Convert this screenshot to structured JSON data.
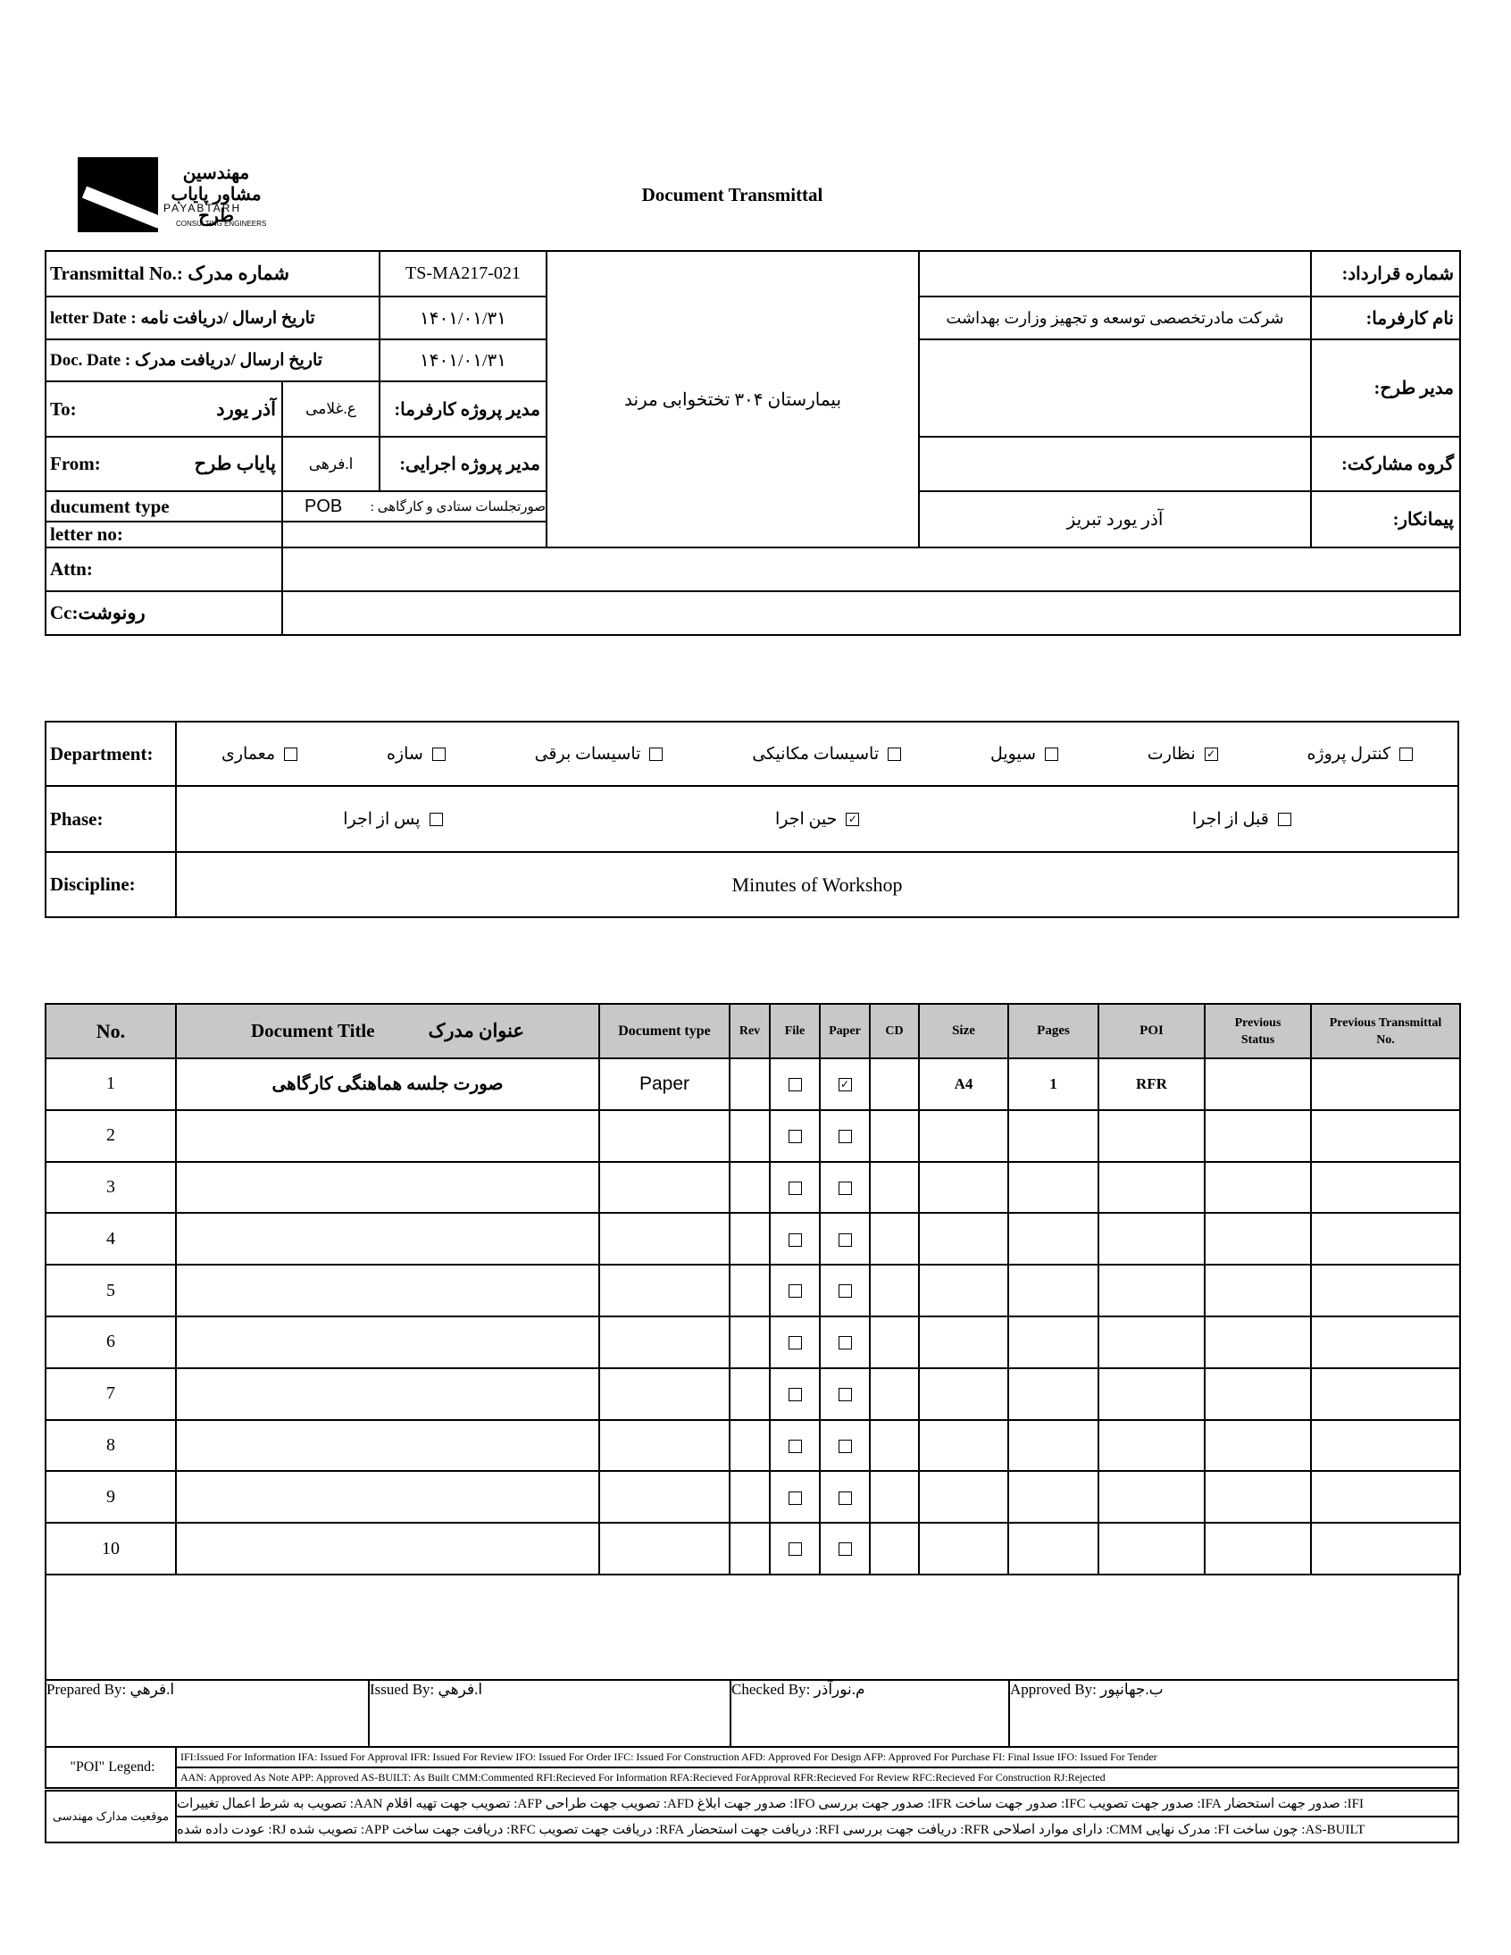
{
  "header": {
    "logo_fa": "مهندسین مشاور پایاب طرح",
    "logo_en": "PAYABTARH",
    "logo_sub": "CONSULTING ENGINEERS",
    "title": "Document Transmittal"
  },
  "info": {
    "transmittal_label": "Transmittal No.: شماره مدرک",
    "transmittal_value": "TS-MA217-021",
    "letter_date_label": "letter Date  :  تاریخ ارسال /دریافت نامه",
    "letter_date_value": "۱۴۰۱/۰۱/۳۱",
    "doc_date_label": "Doc. Date :   تاریخ ارسال /دریافت مدرک",
    "doc_date_value": "۱۴۰۱/۰۱/۳۱",
    "to_label": "To:",
    "to_value": "آذر یورد",
    "client_pm_name": "ع.غلامی",
    "client_pm_label": "مدیر پروژه کارفرما:",
    "from_label": "From:",
    "from_value": "پایاب طرح",
    "exec_pm_name": "ا.فرهی",
    "exec_pm_label": "مدیر پروژه اجرایی:",
    "doctype_label": "ducument type",
    "doctype_value": "POB",
    "doctype_desc": "صورتجلسات ستادی و کارگاهی  :",
    "letter_no_label": "letter no:",
    "project": "بیمارستان ۳۰۴ تختخوابی مرند",
    "contract_label": "شماره قرارداد:",
    "contract_value": "",
    "client_label": "نام کارفرما:",
    "client_value": "شرکت مادرتخصصی توسعه و تجهیز وزارت بهداشت",
    "design_manager_label": "مدیر طرح:",
    "design_manager_value": "",
    "partnership_label": "گروه مشارکت:",
    "partnership_value": "",
    "contractor_label": "پیمانکار:",
    "contractor_value": "آذر یورد تبریز",
    "attn_label": "Attn:",
    "cc_label": "Cc:رونوشت"
  },
  "department": {
    "label": "Department:",
    "options": [
      {
        "label": "معماری",
        "checked": false
      },
      {
        "label": "سازه",
        "checked": false
      },
      {
        "label": "تاسیسات برقی",
        "checked": false
      },
      {
        "label": "تاسیسات مکانیکی",
        "checked": false
      },
      {
        "label": "سیویل",
        "checked": false
      },
      {
        "label": "نظارت",
        "checked": true
      },
      {
        "label": "کنترل پروژه",
        "checked": false
      }
    ]
  },
  "phase": {
    "label": "Phase:",
    "options": [
      {
        "label": "پس از اجرا",
        "checked": false
      },
      {
        "label": "حین اجرا",
        "checked": true
      },
      {
        "label": "قبل از اجرا",
        "checked": false
      }
    ]
  },
  "discipline": {
    "label": "Discipline:",
    "value": "Minutes of Workshop"
  },
  "documents": {
    "headers": {
      "no": "No.",
      "title_en": "Document Title",
      "title_fa": "عنوان مدرک",
      "type": "Document type",
      "rev": "Rev",
      "file": "File",
      "paper": "Paper",
      "cd": "CD",
      "size": "Size",
      "pages": "Pages",
      "poi": "POI",
      "prev_status": "Previous Status",
      "prev_transmittal": "Previous Transmittal No."
    },
    "rows": [
      {
        "no": "1",
        "title": "صورت جلسه هماهنگی کارگاهی",
        "type": "Paper",
        "rev": "",
        "file": false,
        "paper": true,
        "cd": "",
        "size": "A4",
        "pages": "1",
        "poi": "RFR",
        "prev_status": "",
        "prev_transmittal": ""
      },
      {
        "no": "2",
        "file": false,
        "paper": false
      },
      {
        "no": "3",
        "file": false,
        "paper": false
      },
      {
        "no": "4",
        "file": false,
        "paper": false
      },
      {
        "no": "5",
        "file": false,
        "paper": false
      },
      {
        "no": "6",
        "file": false,
        "paper": false
      },
      {
        "no": "7",
        "file": false,
        "paper": false
      },
      {
        "no": "8",
        "file": false,
        "paper": false
      },
      {
        "no": "9",
        "file": false,
        "paper": false
      },
      {
        "no": "10",
        "file": false,
        "paper": false
      }
    ]
  },
  "signatures": {
    "prepared": "Prepared By: ا.فرهي",
    "issued": "Issued By: ا.فرهي",
    "checked": "Checked By: م.نورآذر",
    "approved": "Approved By: ب.جهانپور"
  },
  "legend": {
    "label": "\"POI\" Legend:",
    "line1": "IFI:Issued For Information  IFA: Issued For Approval  IFR: Issued For Review  IFO: Issued For Order  IFC: Issued For Construction AFD: Approved For Design AFP: Approved For Purchase  FI: Final Issue  IFO: Issued For Tender",
    "line2": "AAN: Approved As Note  APP: Approved  AS-BUILT: As Built CMM:Commented  RFI:Recieved For Information  RFA:Recieved ForApproval  RFR:Recieved For Review  RFC:Recieved For Construction  RJ:Rejected"
  },
  "location": {
    "label": "موقعیت مدارک مهندسی",
    "line1": "IFI: صدور جهت استحضار   IFA: صدور جهت تصویب   IFC: صدور جهت ساخت   IFR: صدور جهت بررسی   IFO: صدور جهت ابلاغ   AFD: تصویب جهت طراحی   AFP: تصویب جهت تهیه اقلام   AAN: تصویب به شرط اعمال تغییرات",
    "line2": "AS-BUILT: چون ساخت   FI: مدرک نهایی   CMM: دارای موارد اصلاحی   RFR: دریافت جهت بررسی   RFI: دریافت جهت استحضار   RFA: دریافت جهت تصویب   RFC: دریافت جهت ساخت   APP: تصویب شده   RJ: عودت داده شده"
  }
}
